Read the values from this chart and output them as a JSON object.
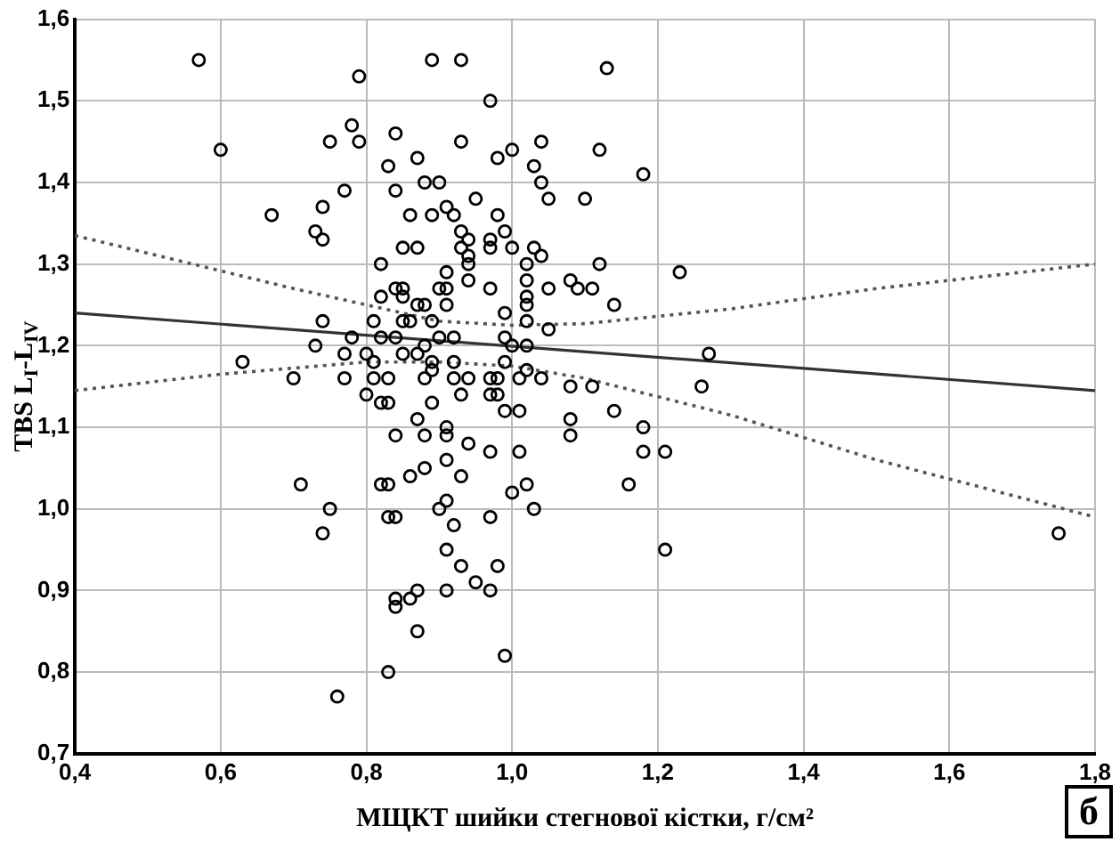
{
  "chart_data": {
    "type": "scatter",
    "xlabel": "МЩКТ шийки стегнової кістки, г/см²",
    "ylabel": "TBS L$_{I}$-L$_{IV}$",
    "annotations": [
      "б"
    ],
    "xlim": [
      0.4,
      1.8
    ],
    "ylim": [
      0.7,
      1.6
    ],
    "xticks": [
      {
        "value": 0.4,
        "label": "0,4"
      },
      {
        "value": 0.6,
        "label": "0,6"
      },
      {
        "value": 0.8,
        "label": "0,8"
      },
      {
        "value": 1.0,
        "label": "1,0"
      },
      {
        "value": 1.2,
        "label": "1,2"
      },
      {
        "value": 1.4,
        "label": "1,4"
      },
      {
        "value": 1.6,
        "label": "1,6"
      },
      {
        "value": 1.8,
        "label": "1,8"
      }
    ],
    "yticks": [
      {
        "value": 0.7,
        "label": "0,7"
      },
      {
        "value": 0.8,
        "label": "0,8"
      },
      {
        "value": 0.9,
        "label": "0,9"
      },
      {
        "value": 1.0,
        "label": "1,0"
      },
      {
        "value": 1.1,
        "label": "1,1"
      },
      {
        "value": 1.2,
        "label": "1,2"
      },
      {
        "value": 1.3,
        "label": "1,3"
      },
      {
        "value": 1.4,
        "label": "1,4"
      },
      {
        "value": 1.5,
        "label": "1,5"
      },
      {
        "value": 1.6,
        "label": "1,6"
      }
    ],
    "grid": true,
    "legend": false,
    "series": [
      {
        "marker": "circle",
        "color": "#000000",
        "x": [
          0.57,
          0.6,
          0.67,
          0.73,
          0.74,
          0.74,
          0.77,
          0.75,
          0.78,
          0.79,
          0.79,
          0.84,
          0.83,
          0.84,
          0.87,
          0.88,
          0.9,
          0.89,
          0.93,
          0.93,
          0.97,
          0.98,
          1.0,
          0.86,
          0.89,
          0.91,
          0.92,
          0.95,
          0.98,
          0.99,
          0.93,
          0.94,
          0.97,
          0.97,
          0.87,
          0.85,
          0.93,
          0.94,
          1.0,
          0.82,
          0.91,
          0.94,
          0.94,
          0.97,
          0.84,
          0.85,
          0.9,
          0.91,
          0.87,
          0.88,
          0.85,
          0.91,
          0.82,
          0.74,
          0.81,
          0.85,
          0.86,
          0.89,
          0.99,
          0.73,
          0.78,
          0.82,
          0.84,
          0.88,
          0.9,
          0.92,
          0.99,
          1.0,
          0.8,
          0.81,
          0.85,
          0.87,
          0.89,
          0.92,
          0.99,
          0.63,
          0.7,
          0.77,
          0.77,
          0.81,
          0.83,
          0.88,
          0.89,
          0.94,
          0.92,
          0.97,
          0.98,
          1.01,
          0.93,
          0.97,
          0.8,
          0.82,
          0.83,
          0.87,
          0.89,
          0.98,
          0.99,
          1.01,
          0.84,
          0.88,
          0.91,
          0.91,
          0.94,
          0.97,
          1.01,
          0.91,
          0.88,
          0.93,
          0.86,
          0.71,
          0.82,
          0.83,
          1.0,
          0.91,
          0.9,
          0.75,
          0.83,
          0.84,
          0.92,
          0.97,
          0.74,
          0.91,
          0.93,
          0.98,
          0.95,
          0.97,
          0.87,
          0.91,
          0.84,
          0.86,
          0.84,
          0.87,
          0.99,
          0.83,
          0.76,
          1.13,
          1.04,
          1.03,
          1.04,
          1.05,
          1.12,
          1.1,
          1.18,
          1.03,
          1.04,
          1.02,
          1.12,
          1.02,
          1.02,
          1.02,
          1.05,
          1.08,
          1.09,
          1.11,
          1.14,
          1.23,
          1.02,
          1.05,
          1.02,
          1.27,
          1.02,
          1.04,
          1.08,
          1.11,
          1.14,
          1.26,
          1.08,
          1.08,
          1.18,
          1.18,
          1.21,
          1.16,
          1.02,
          1.03,
          1.21,
          1.75
        ],
        "values": [
          1.55,
          1.44,
          1.36,
          1.34,
          1.33,
          1.37,
          1.39,
          1.45,
          1.47,
          1.45,
          1.53,
          1.46,
          1.42,
          1.39,
          1.43,
          1.4,
          1.4,
          1.55,
          1.55,
          1.45,
          1.5,
          1.43,
          1.44,
          1.36,
          1.36,
          1.37,
          1.36,
          1.38,
          1.36,
          1.34,
          1.34,
          1.33,
          1.33,
          1.32,
          1.32,
          1.32,
          1.32,
          1.31,
          1.32,
          1.3,
          1.29,
          1.3,
          1.28,
          1.27,
          1.27,
          1.27,
          1.27,
          1.27,
          1.25,
          1.25,
          1.26,
          1.25,
          1.26,
          1.23,
          1.23,
          1.23,
          1.23,
          1.23,
          1.24,
          1.2,
          1.21,
          1.21,
          1.21,
          1.2,
          1.21,
          1.21,
          1.21,
          1.2,
          1.19,
          1.18,
          1.19,
          1.19,
          1.18,
          1.18,
          1.18,
          1.18,
          1.16,
          1.19,
          1.16,
          1.16,
          1.16,
          1.16,
          1.17,
          1.16,
          1.16,
          1.16,
          1.16,
          1.16,
          1.14,
          1.14,
          1.14,
          1.13,
          1.13,
          1.11,
          1.13,
          1.14,
          1.12,
          1.12,
          1.09,
          1.09,
          1.1,
          1.09,
          1.08,
          1.07,
          1.07,
          1.06,
          1.05,
          1.04,
          1.04,
          1.03,
          1.03,
          1.03,
          1.02,
          1.01,
          1.0,
          1.0,
          0.99,
          0.99,
          0.98,
          0.99,
          0.97,
          0.95,
          0.93,
          0.93,
          0.91,
          0.9,
          0.9,
          0.9,
          0.89,
          0.89,
          0.88,
          0.85,
          0.82,
          0.8,
          0.77,
          1.54,
          1.45,
          1.42,
          1.4,
          1.38,
          1.44,
          1.38,
          1.41,
          1.32,
          1.31,
          1.3,
          1.3,
          1.28,
          1.26,
          1.25,
          1.27,
          1.28,
          1.27,
          1.27,
          1.25,
          1.29,
          1.23,
          1.22,
          1.2,
          1.19,
          1.17,
          1.16,
          1.15,
          1.15,
          1.12,
          1.15,
          1.11,
          1.09,
          1.1,
          1.07,
          1.07,
          1.03,
          1.03,
          1.0,
          0.95,
          0.97
        ]
      },
      {
        "type": "line",
        "line_style": "solid",
        "color": "#333333",
        "x": [
          0.4,
          1.8
        ],
        "values": [
          1.24,
          1.145
        ]
      },
      {
        "type": "line",
        "line_style": "dotted",
        "color": "#555555",
        "x": [
          0.4,
          0.7,
          0.9,
          1.0,
          1.1,
          1.3,
          1.5,
          1.8
        ],
        "values": [
          1.335,
          1.27,
          1.23,
          1.225,
          1.227,
          1.245,
          1.27,
          1.3
        ]
      },
      {
        "type": "line",
        "line_style": "dotted",
        "color": "#555555",
        "x": [
          0.4,
          0.6,
          0.8,
          0.9,
          1.0,
          1.1,
          1.3,
          1.5,
          1.8
        ],
        "values": [
          1.145,
          1.165,
          1.18,
          1.18,
          1.175,
          1.16,
          1.115,
          1.06,
          0.99
        ]
      }
    ]
  }
}
